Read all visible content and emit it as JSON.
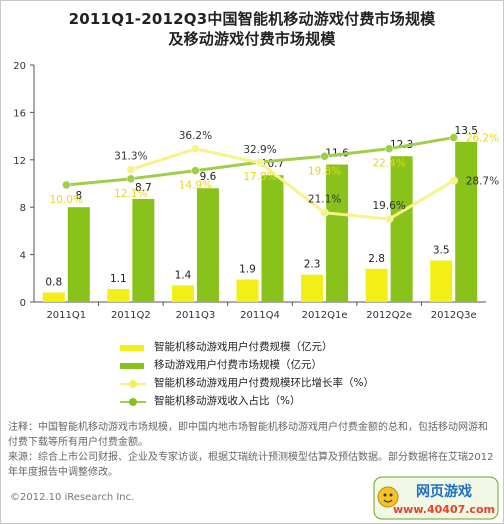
{
  "title_line1": "2011Q1-2012Q3中国智能机移动游戏付费市场规模",
  "title_line2": "及移动游戏付费市场规模",
  "chart_data": {
    "type": "bar",
    "categories": [
      "2011Q1",
      "2011Q2",
      "2011Q3",
      "2011Q4",
      "2012Q1e",
      "2012Q2e",
      "2012Q3e"
    ],
    "ylim": [
      0,
      20
    ],
    "y_ticks": [
      0,
      4,
      8,
      12,
      16,
      20
    ],
    "series": [
      {
        "name": "智能机移动游戏用户付费规模（亿元）",
        "kind": "bar",
        "values": [
          0.8,
          1.1,
          1.4,
          1.9,
          2.3,
          2.8,
          3.5
        ],
        "labels": [
          "0.8",
          "1.1",
          "1.4",
          "1.9",
          "2.3",
          "2.8",
          "3.5"
        ],
        "color": "#f2ee16"
      },
      {
        "name": "移动游戏用户付费市场规模（亿元）",
        "kind": "bar",
        "values": [
          8,
          8.7,
          9.6,
          10.7,
          11.6,
          12.3,
          13.5
        ],
        "labels": [
          "8",
          "8.7",
          "9.6",
          "10.7",
          "11.6",
          "12.3",
          "13.5"
        ],
        "color": "#88c21a"
      },
      {
        "name": "智能机移动游戏用户付费规模环比增长率（%）",
        "kind": "line",
        "values": [
          null,
          31.3,
          36.2,
          32.9,
          21.1,
          19.6,
          28.7
        ],
        "labels": [
          "",
          "31.3%",
          "36.2%",
          "32.9%",
          "21.1%",
          "19.6%",
          "28.7%"
        ],
        "color": "#f7f28a",
        "y_range_pct": [
          0,
          56
        ]
      },
      {
        "name": "智能机移动游戏收入占比（%）",
        "kind": "line",
        "values": [
          10.0,
          12.1,
          14.9,
          17.8,
          19.8,
          22.4,
          26.2
        ],
        "labels": [
          "10.0%",
          "12.1%",
          "14.9%",
          "17.8%",
          "19.8%",
          "22.4%",
          "26.2%"
        ],
        "color": "#9fce4a",
        "y_range_pct": [
          -30,
          51
        ]
      }
    ],
    "legend_position": "bottom",
    "grid": false
  },
  "notes": {
    "line1": "注释：中国智能机移动游戏市场规模，即中国内地市场智能机移动游戏用户付费金额的总和，包括移动网游和付费下载等所有用户付费金额。",
    "line2": "来源：综合上市公司财报、企业及专家访谈，根据艾瑞统计预测模型估算及预估数据。部分数据将在艾瑞2012年年度报告中调整修改。"
  },
  "copyright": "©2012.10 iResearch Inc.",
  "watermark": {
    "top": "网页游戏",
    "bottom": "www.40407.com"
  }
}
